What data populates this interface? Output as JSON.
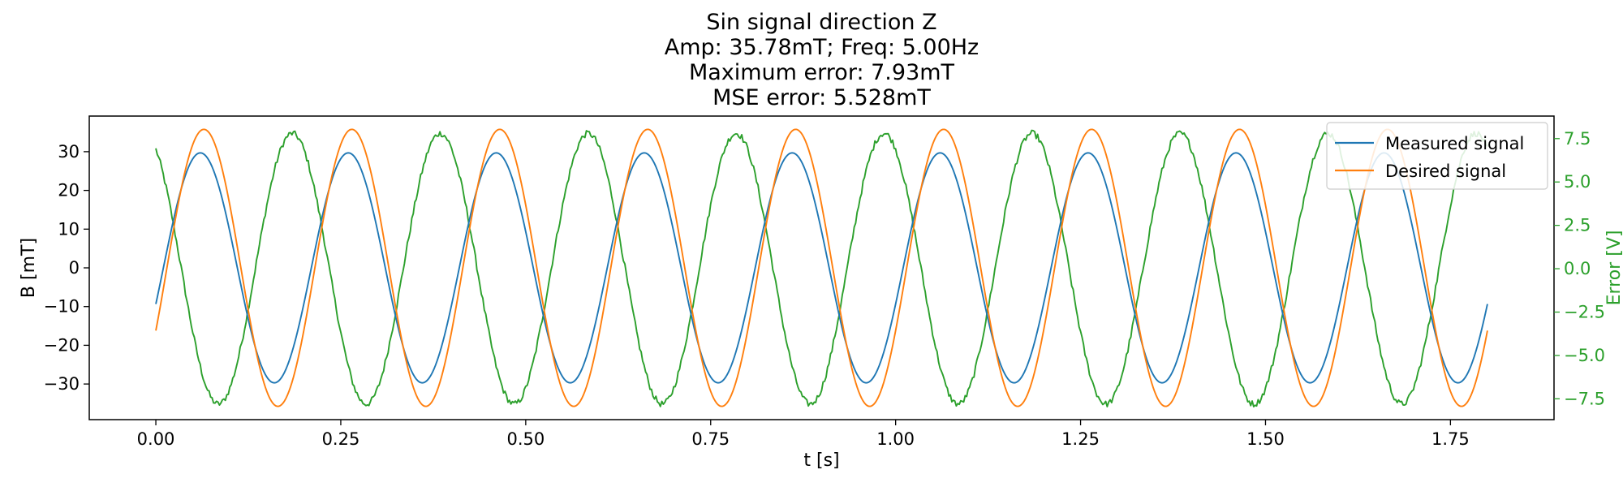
{
  "chart_data": {
    "type": "line",
    "title_lines": [
      "Sin signal direction Z",
      "Amp: 35.78mT; Freq: 5.00Hz",
      "Maximum error: 7.93mT",
      "MSE error: 5.528mT"
    ],
    "xlabel": "t [s]",
    "ylabel": "B [mT]",
    "y2label": "Error [V]",
    "xlim": [
      -0.09,
      1.89
    ],
    "ylim": [
      -39.2,
      39.2
    ],
    "y2lim": [
      -8.7,
      8.8
    ],
    "x_ticks": [
      0.0,
      0.25,
      0.5,
      0.75,
      1.0,
      1.25,
      1.5,
      1.75
    ],
    "x_tick_labels": [
      "0.00",
      "0.25",
      "0.50",
      "0.75",
      "1.00",
      "1.25",
      "1.50",
      "1.75"
    ],
    "y_ticks": [
      -30,
      -20,
      -10,
      0,
      10,
      20,
      30
    ],
    "y_tick_labels": [
      "−30",
      "−20",
      "−10",
      "0",
      "10",
      "20",
      "30"
    ],
    "y2_ticks": [
      -7.5,
      -5.0,
      -2.5,
      0.0,
      2.5,
      5.0,
      7.5
    ],
    "y2_tick_labels": [
      "−7.5",
      "−5.0",
      "−2.5",
      "0.0",
      "2.5",
      "5.0",
      "7.5"
    ],
    "grid": false,
    "legend_position": "top-right",
    "legend": [
      "Measured signal",
      "Desired signal"
    ],
    "colors": {
      "measured": "#1f77b4",
      "desired": "#ff7f0e",
      "error": "#2ca02c",
      "y2_axis": "#2ca02c"
    },
    "x_range": [
      0.0,
      1.8
    ],
    "series": [
      {
        "name": "Measured signal",
        "axis": "left",
        "color": "#1f77b4",
        "amplitude": 29.7,
        "frequency_hz": 5.0,
        "phase_rad": -0.32,
        "offset": 0.0,
        "noise": 0.0
      },
      {
        "name": "Desired signal",
        "axis": "left",
        "color": "#ff7f0e",
        "amplitude": 35.78,
        "frequency_hz": 5.0,
        "phase_rad": -0.47,
        "offset": 0.0,
        "noise": 0.0
      },
      {
        "axis": "right",
        "color": "#2ca02c",
        "amplitude": 7.8,
        "frequency_hz": 5.0,
        "phase_rad": 2.06,
        "offset": 0.0,
        "noise": 0.18
      }
    ]
  }
}
